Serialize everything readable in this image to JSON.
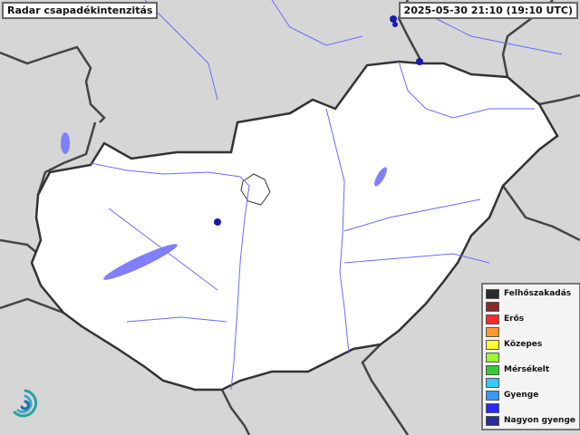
{
  "title": "Radar csapadékintenzitás",
  "timestamp": "2025-05-30 21:10 (19:10 UTC)",
  "legend": [
    {
      "label": "Felhőszakadás",
      "color": "#2b2b2b"
    },
    {
      "label": "",
      "color": "#8b2a2a"
    },
    {
      "label": "Erős",
      "color": "#ff2a2a"
    },
    {
      "label": "",
      "color": "#ff9a2a"
    },
    {
      "label": "Közepes",
      "color": "#ffff30"
    },
    {
      "label": "",
      "color": "#99ff33"
    },
    {
      "label": "Mérsékelt",
      "color": "#33cc33"
    },
    {
      "label": "",
      "color": "#33ccff"
    },
    {
      "label": "Gyenge",
      "color": "#3399ff"
    },
    {
      "label": "",
      "color": "#2a2aff"
    },
    {
      "label": "Nagyon gyenge",
      "color": "#2a2a99"
    }
  ],
  "colors": {
    "background": "#d6d6d6",
    "country_fill": "#ffffff",
    "border": "#444444",
    "rivers": "#6a6aff",
    "lakes": "#8080ff",
    "echo": "#1a1aaa"
  },
  "logo_icon": "omsz-swirl-logo"
}
